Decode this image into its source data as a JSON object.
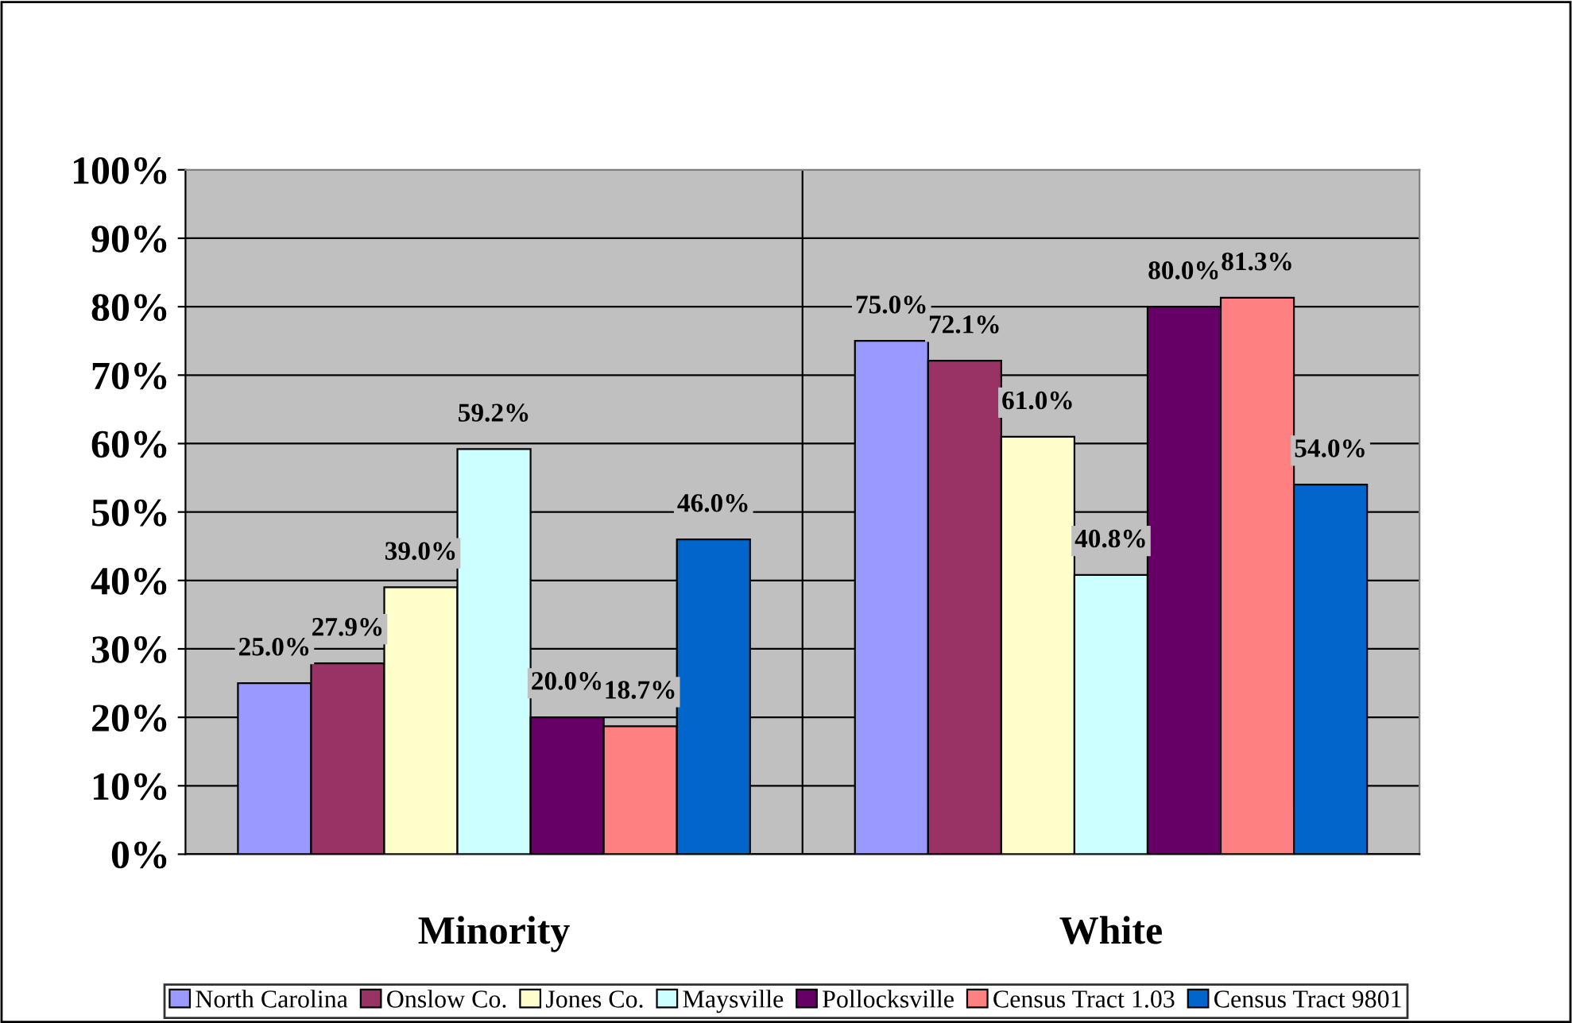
{
  "chart_data": {
    "type": "bar",
    "categories": [
      "Minority",
      "White"
    ],
    "series": [
      {
        "name": "North Carolina",
        "color": "#9999ff",
        "values": [
          25.0,
          75.0
        ],
        "value_labels": [
          "25.0%",
          "75.0%"
        ]
      },
      {
        "name": "Onslow Co.",
        "color": "#993366",
        "values": [
          27.9,
          72.1
        ],
        "value_labels": [
          "27.9%",
          "72.1%"
        ]
      },
      {
        "name": "Jones Co.",
        "color": "#ffffcc",
        "values": [
          39.0,
          61.0
        ],
        "value_labels": [
          "39.0%",
          "61.0%"
        ]
      },
      {
        "name": "Maysville",
        "color": "#ccffff",
        "values": [
          59.2,
          40.8
        ],
        "value_labels": [
          "59.2%",
          "40.8%"
        ]
      },
      {
        "name": "Pollocksville",
        "color": "#660066",
        "values": [
          20.0,
          80.0
        ],
        "value_labels": [
          "20.0%",
          "80.0%"
        ]
      },
      {
        "name": "Census Tract 1.03",
        "color": "#ff8080",
        "values": [
          18.7,
          81.3
        ],
        "value_labels": [
          "18.7%",
          "81.3%"
        ]
      },
      {
        "name": "Census Tract 9801",
        "color": "#0066cc",
        "values": [
          46.0,
          54.0
        ],
        "value_labels": [
          "46.0%",
          "54.0%"
        ]
      }
    ],
    "ylim": [
      0,
      100
    ],
    "yticks": [
      {
        "value": 0,
        "label": "0%"
      },
      {
        "value": 10,
        "label": "10%"
      },
      {
        "value": 20,
        "label": "20%"
      },
      {
        "value": 30,
        "label": "30%"
      },
      {
        "value": 40,
        "label": "40%"
      },
      {
        "value": 50,
        "label": "50%"
      },
      {
        "value": 60,
        "label": "60%"
      },
      {
        "value": 70,
        "label": "70%"
      },
      {
        "value": 80,
        "label": "80%"
      },
      {
        "value": 90,
        "label": "90%"
      },
      {
        "value": 100,
        "label": "100%"
      }
    ],
    "grid": true,
    "legend": "bottom"
  }
}
